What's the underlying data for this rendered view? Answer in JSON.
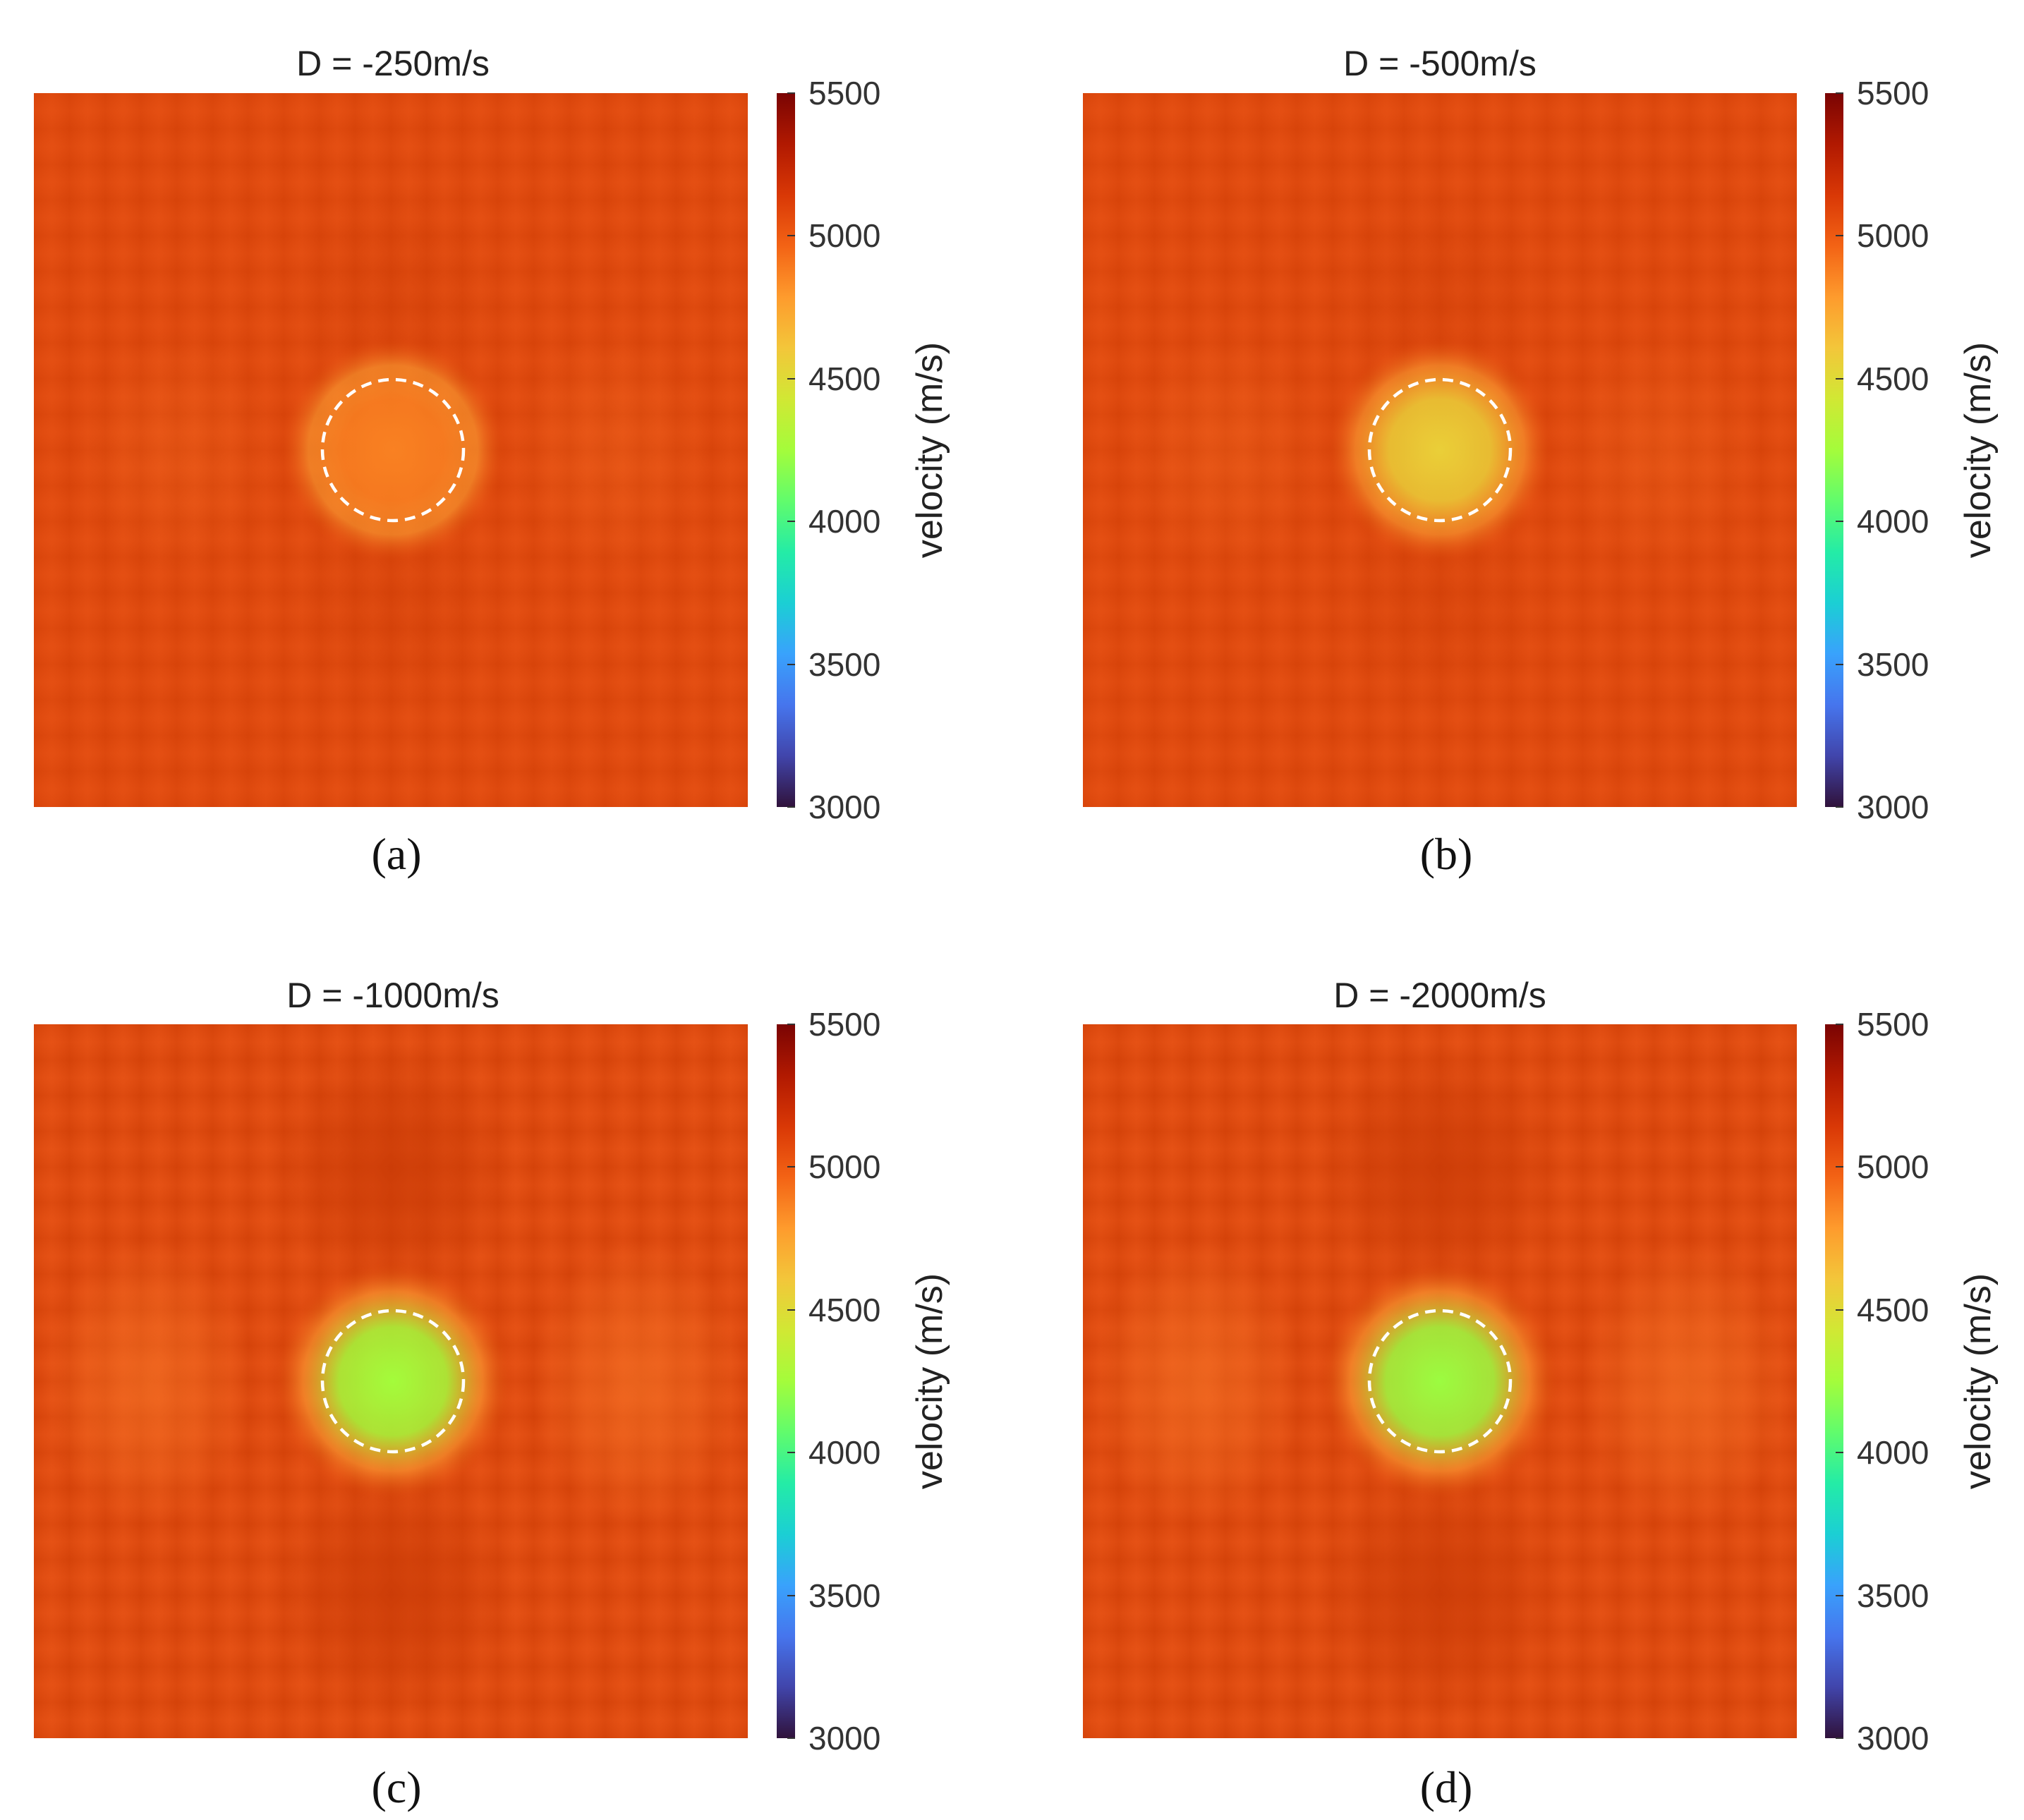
{
  "figure": {
    "colorbar_colors": [
      "#30123b",
      "#4145ab",
      "#4675ed",
      "#39a2fc",
      "#1bcfd4",
      "#24eca6",
      "#61fc6c",
      "#a4fc3b",
      "#d1e834",
      "#f3c63a",
      "#fe9b2d",
      "#f36315",
      "#d93806",
      "#b11901",
      "#7a0403"
    ],
    "background_color": "#ea5716"
  },
  "chart_data": [
    {
      "type": "heatmap",
      "title": "D = -250m/s",
      "caption": "(a)",
      "colorbar": {
        "label": "velocity (m/s)",
        "range": [
          3000,
          5500
        ],
        "ticks": [
          "5500",
          "5000",
          "4500",
          "4000",
          "3500",
          "3000"
        ]
      },
      "background_velocity": 5080,
      "anomaly_center_velocity": 4870,
      "anomaly_outline": "dashed-circle",
      "side_lobes": false
    },
    {
      "type": "heatmap",
      "title": "D = -500m/s",
      "caption": "(b)",
      "colorbar": {
        "label": "velocity (m/s)",
        "range": [
          3000,
          5500
        ],
        "ticks": [
          "5500",
          "5000",
          "4500",
          "4000",
          "3500",
          "3000"
        ]
      },
      "background_velocity": 5080,
      "anomaly_center_velocity": 4560,
      "anomaly_outline": "dashed-circle",
      "side_lobes": false
    },
    {
      "type": "heatmap",
      "title": "D = -1000m/s",
      "caption": "(c)",
      "colorbar": {
        "label": "velocity (m/s)",
        "range": [
          3000,
          5500
        ],
        "ticks": [
          "5500",
          "5000",
          "4500",
          "4000",
          "3500",
          "3000"
        ]
      },
      "background_velocity": 5080,
      "anomaly_center_velocity": 4250,
      "anomaly_outline": "dashed-circle",
      "side_lobes": true
    },
    {
      "type": "heatmap",
      "title": "D = -2000m/s",
      "caption": "(d)",
      "colorbar": {
        "label": "velocity (m/s)",
        "range": [
          3000,
          5500
        ],
        "ticks": [
          "5500",
          "5000",
          "4500",
          "4000",
          "3500",
          "3000"
        ]
      },
      "background_velocity": 5080,
      "anomaly_center_velocity": 4230,
      "anomaly_outline": "dashed-circle",
      "side_lobes": true
    }
  ]
}
